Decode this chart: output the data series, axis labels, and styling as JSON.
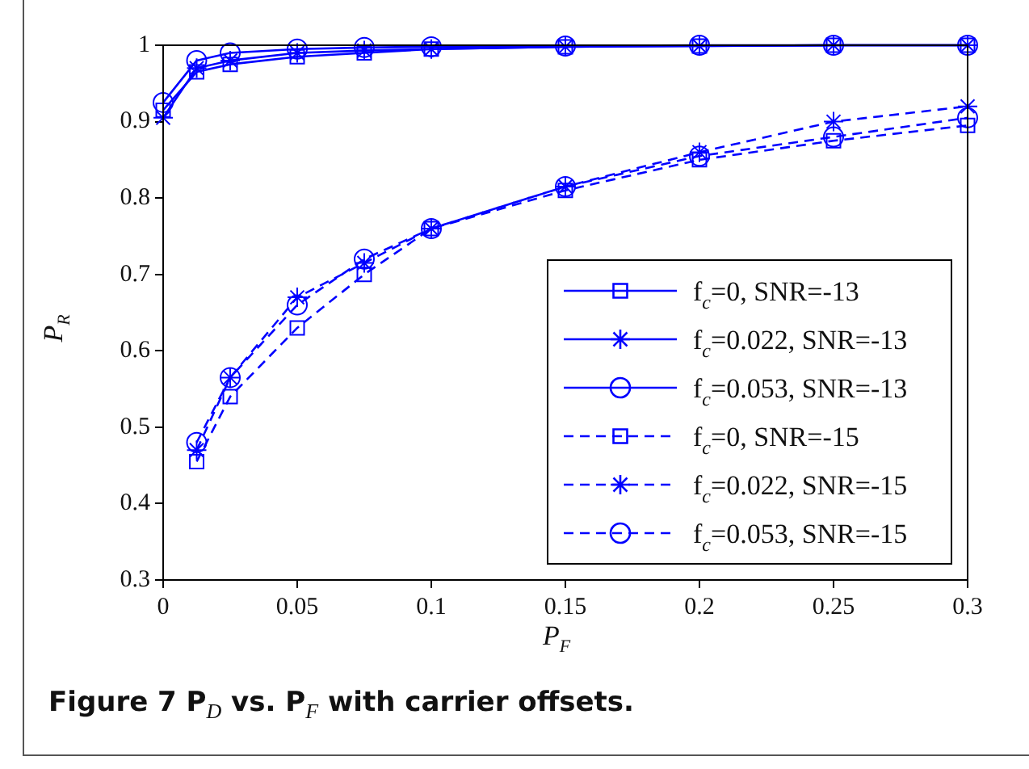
{
  "chart_data": {
    "type": "line",
    "title": "Figure 7 P$_{D}$ vs. P$_{F}$ with carrier offsets.",
    "xlabel": "P$_{F}$",
    "ylabel": "P$_{R}$",
    "x": [
      0,
      0.0125,
      0.025,
      0.05,
      0.075,
      0.1,
      0.15,
      0.2,
      0.25,
      0.3
    ],
    "xlim": [
      0,
      0.3
    ],
    "xticks": [
      0,
      0.05,
      0.1,
      0.15,
      0.2,
      0.25,
      0.3
    ],
    "ylim": [
      0.3,
      1
    ],
    "yticks": [
      0.3,
      0.4,
      0.5,
      0.6,
      0.7,
      0.8,
      0.9,
      1
    ],
    "grid": false,
    "legend": "bottom right",
    "series": [
      {
        "name": "f$_{c}$=0, SNR=-13",
        "color": "#0000ff",
        "marker": "square",
        "line_style": "solid",
        "values": [
          0.915,
          0.965,
          0.975,
          0.985,
          0.99,
          0.995,
          0.998,
          0.999,
          1,
          1
        ]
      },
      {
        "name": "f$_{c}$=0.022, SNR=-13",
        "color": "#0000ff",
        "marker": "cross",
        "line_style": "solid",
        "values": [
          0.905,
          0.97,
          0.98,
          0.99,
          0.993,
          0.995,
          0.998,
          0.999,
          1,
          1
        ]
      },
      {
        "name": "f$_{c}$=0.053, SNR=-13",
        "color": "#0000ff",
        "marker": "circle",
        "line_style": "solid",
        "values": [
          0.925,
          0.98,
          0.99,
          0.995,
          0.997,
          0.998,
          0.999,
          1,
          1,
          1
        ]
      },
      {
        "name": "f$_{c}$=0, SNR=-15",
        "color": "#0000ff",
        "marker": "square",
        "line_style": "dashed",
        "values": [
          null,
          0.455,
          0.54,
          0.63,
          0.7,
          0.76,
          0.81,
          0.85,
          0.875,
          0.895
        ]
      },
      {
        "name": "f$_{c}$=0.022, SNR=-15",
        "color": "#0000ff",
        "marker": "cross",
        "line_style": "dashed",
        "values": [
          null,
          0.47,
          0.565,
          0.67,
          0.715,
          0.76,
          0.815,
          0.86,
          0.9,
          0.92
        ]
      },
      {
        "name": "f$_{c}$=0.053, SNR=-15",
        "color": "#0000ff",
        "marker": "circle",
        "line_style": "dashed",
        "values": [
          null,
          0.48,
          0.565,
          0.66,
          0.72,
          0.76,
          0.815,
          0.855,
          0.88,
          0.905
        ]
      }
    ]
  }
}
